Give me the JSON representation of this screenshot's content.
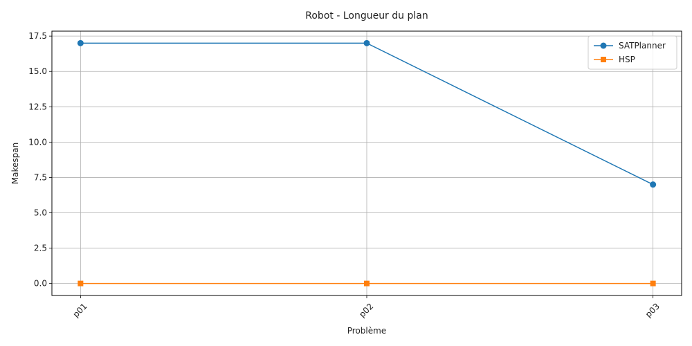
{
  "chart_data": {
    "type": "line",
    "title": "Robot - Longueur du plan",
    "xlabel": "Problème",
    "ylabel": "Makespan",
    "categories": [
      "p01",
      "p02",
      "p03"
    ],
    "ylim": [
      -0.85,
      17.85
    ],
    "yticks": [
      0.0,
      2.5,
      5.0,
      7.5,
      10.0,
      12.5,
      15.0,
      17.5
    ],
    "ytick_labels": [
      "0.0",
      "2.5",
      "5.0",
      "7.5",
      "10.0",
      "12.5",
      "15.0",
      "17.5"
    ],
    "xtick_rotation_deg": 45,
    "grid": true,
    "legend_position": "top-right",
    "series": [
      {
        "name": "SATPlanner",
        "values": [
          17,
          17,
          7
        ],
        "color": "#1f77b4",
        "marker": "circle"
      },
      {
        "name": "HSP",
        "values": [
          0,
          0,
          0
        ],
        "color": "#ff7f0e",
        "marker": "square"
      }
    ]
  }
}
